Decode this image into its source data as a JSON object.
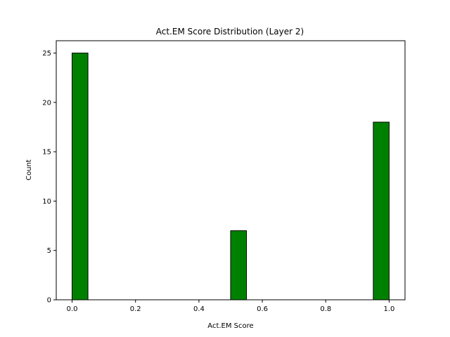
{
  "chart_data": {
    "type": "bar",
    "title": "Act.EM Score Distribution (Layer 2)",
    "xlabel": "Act.EM Score",
    "ylabel": "Count",
    "xlim": [
      -0.05,
      1.05
    ],
    "ylim": [
      0,
      26.25
    ],
    "xticks": [
      0.0,
      0.2,
      0.4,
      0.6,
      0.8,
      1.0
    ],
    "xtick_labels": [
      "0.0",
      "0.2",
      "0.4",
      "0.6",
      "0.8",
      "1.0"
    ],
    "yticks": [
      0,
      5,
      10,
      15,
      20,
      25
    ],
    "ytick_labels": [
      "0",
      "5",
      "10",
      "15",
      "20",
      "25"
    ],
    "bin_width": 0.05,
    "bars": [
      {
        "x0": 0.0,
        "x1": 0.05,
        "count": 25
      },
      {
        "x0": 0.5,
        "x1": 0.55,
        "count": 7
      },
      {
        "x0": 0.95,
        "x1": 1.0,
        "count": 18
      }
    ],
    "grid": false,
    "colors": {
      "bar_fill": "#008000",
      "bar_edge": "#000000"
    }
  }
}
